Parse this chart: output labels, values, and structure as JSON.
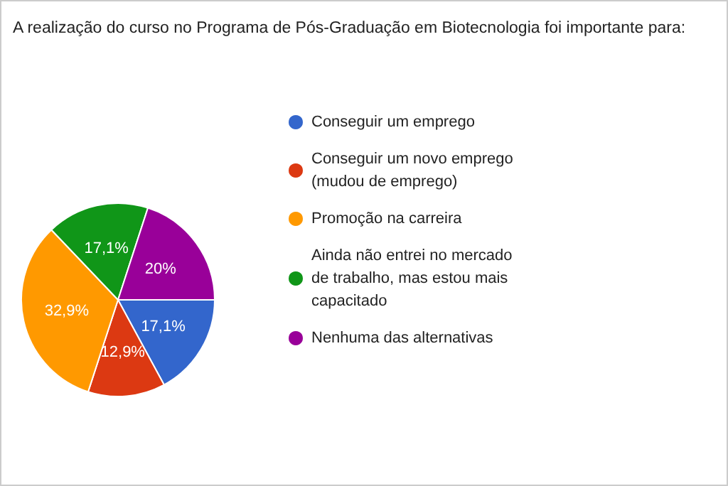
{
  "chart_data": {
    "type": "pie",
    "title": "A realização do curso no Programa de Pós-Graduação em Biotecnologia foi importante para:",
    "categories": [
      "Conseguir um emprego",
      "Conseguir um novo emprego (mudou de emprego)",
      "Promoção na carreira",
      "Ainda não entrei no mercado de trabalho, mas estou mais capacitado",
      "Nenhuma das alternativas"
    ],
    "values": [
      17.1,
      12.9,
      32.9,
      17.1,
      20
    ],
    "value_labels": [
      "17,1%",
      "12,9%",
      "32,9%",
      "17,1%",
      "20%"
    ],
    "colors": [
      "#3366cc",
      "#dc3912",
      "#ff9900",
      "#109618",
      "#990099"
    ],
    "legend": "right"
  }
}
